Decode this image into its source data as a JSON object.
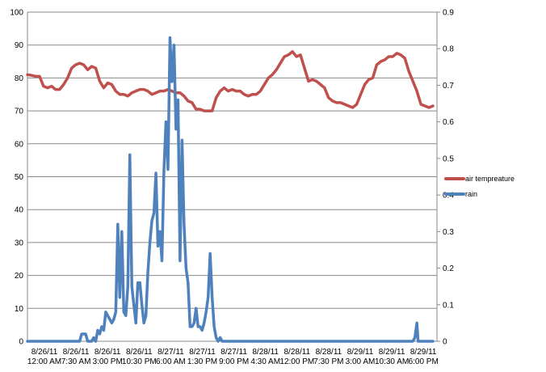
{
  "chart_data": {
    "type": "line",
    "title": "",
    "xlabel": "",
    "ylabel": "",
    "x_ticks": [
      [
        "8/26/11",
        "12:00 AM"
      ],
      [
        "8/26/11",
        "7:30 AM"
      ],
      [
        "8/26/11",
        "3:00 PM"
      ],
      [
        "8/26/11",
        "10:30 PM"
      ],
      [
        "8/27/11",
        "6:00 AM"
      ],
      [
        "8/27/11",
        "1:30 PM"
      ],
      [
        "8/27/11",
        "9:00 PM"
      ],
      [
        "8/28/11",
        "4:30 AM"
      ],
      [
        "8/28/11",
        "12:00 PM"
      ],
      [
        "8/28/11",
        "7:30 PM"
      ],
      [
        "8/29/11",
        "3:00 AM"
      ],
      [
        "8/29/11",
        "10:30 AM"
      ],
      [
        "8/29/11",
        "6:00 PM"
      ]
    ],
    "x_range": [
      0,
      102
    ],
    "y_left": {
      "min": 0,
      "max": 100,
      "ticks": [
        "0",
        "10",
        "20",
        "30",
        "40",
        "50",
        "60",
        "70",
        "80",
        "90",
        "100"
      ]
    },
    "y_right": {
      "min": 0,
      "max": 0.9,
      "ticks": [
        "0",
        "0.1",
        "0.2",
        "0.3",
        "0.4",
        "0.5",
        "0.6",
        "0.7",
        "0.8",
        "0.9"
      ]
    },
    "grid": "horizontal",
    "legend_position": "right",
    "series": [
      {
        "name": "air tempreature",
        "axis": "left",
        "color": "#c0504d",
        "points": [
          [
            0,
            81
          ],
          [
            1,
            80.8
          ],
          [
            2,
            80.5
          ],
          [
            3,
            80.5
          ],
          [
            4,
            77.5
          ],
          [
            5,
            77
          ],
          [
            6,
            77.5
          ],
          [
            7,
            76.5
          ],
          [
            8,
            76.5
          ],
          [
            9,
            78
          ],
          [
            10,
            80
          ],
          [
            11,
            83
          ],
          [
            12,
            84
          ],
          [
            13,
            84.5
          ],
          [
            14,
            84
          ],
          [
            15,
            82.5
          ],
          [
            16,
            83.5
          ],
          [
            17,
            83
          ],
          [
            18,
            79
          ],
          [
            19,
            77
          ],
          [
            20,
            78.5
          ],
          [
            21,
            78
          ],
          [
            22,
            76
          ],
          [
            23,
            75
          ],
          [
            24,
            75
          ],
          [
            25,
            74.5
          ],
          [
            26,
            75.5
          ],
          [
            27,
            76
          ],
          [
            28,
            76.5
          ],
          [
            29,
            76.5
          ],
          [
            30,
            76
          ],
          [
            31,
            75
          ],
          [
            32,
            75.5
          ],
          [
            33,
            76
          ],
          [
            34,
            76
          ],
          [
            35,
            76.5
          ],
          [
            36,
            76
          ],
          [
            37,
            75.5
          ],
          [
            38,
            75.5
          ],
          [
            39,
            74.5
          ],
          [
            40,
            73
          ],
          [
            41,
            72.5
          ],
          [
            42,
            70.5
          ],
          [
            43,
            70.5
          ],
          [
            44,
            70
          ],
          [
            45,
            70
          ],
          [
            46,
            70
          ],
          [
            47,
            74
          ],
          [
            48,
            76
          ],
          [
            49,
            77
          ],
          [
            50,
            76
          ],
          [
            51,
            76.5
          ],
          [
            52,
            76
          ],
          [
            53,
            76
          ],
          [
            54,
            75
          ],
          [
            55,
            74.5
          ],
          [
            56,
            75
          ],
          [
            57,
            75
          ],
          [
            58,
            76
          ],
          [
            59,
            78
          ],
          [
            60,
            80
          ],
          [
            61,
            81
          ],
          [
            62,
            82.5
          ],
          [
            63,
            84.5
          ],
          [
            64,
            86.5
          ],
          [
            65,
            87
          ],
          [
            66,
            88
          ],
          [
            67,
            86.5
          ],
          [
            68,
            87
          ],
          [
            69,
            83
          ],
          [
            70,
            79
          ],
          [
            71,
            79.5
          ],
          [
            72,
            79
          ],
          [
            73,
            78
          ],
          [
            74,
            77
          ],
          [
            75,
            74
          ],
          [
            76,
            73
          ],
          [
            77,
            72.5
          ],
          [
            78,
            72.5
          ],
          [
            79,
            72
          ],
          [
            80,
            71.5
          ],
          [
            81,
            71
          ],
          [
            82,
            72
          ],
          [
            83,
            75
          ],
          [
            84,
            78
          ],
          [
            85,
            79.5
          ],
          [
            86,
            80
          ],
          [
            87,
            84
          ],
          [
            88,
            85
          ],
          [
            89,
            85.5
          ],
          [
            90,
            86.5
          ],
          [
            91,
            86.5
          ],
          [
            92,
            87.5
          ],
          [
            93,
            87
          ],
          [
            94,
            86
          ],
          [
            95,
            82
          ],
          [
            96,
            79
          ],
          [
            97,
            76
          ],
          [
            98,
            72
          ],
          [
            99,
            71.5
          ],
          [
            100,
            71
          ],
          [
            101,
            71.5
          ]
        ]
      },
      {
        "name": "rain",
        "axis": "right",
        "color": "#4f81bd",
        "points": [
          [
            0,
            0
          ],
          [
            13,
            0
          ],
          [
            13.5,
            0.02
          ],
          [
            14.5,
            0.02
          ],
          [
            15,
            0
          ],
          [
            16,
            0
          ],
          [
            16.5,
            0.01
          ],
          [
            17,
            0
          ],
          [
            17.5,
            0.03
          ],
          [
            18,
            0.02
          ],
          [
            18.5,
            0.04
          ],
          [
            19,
            0.03
          ],
          [
            19.5,
            0.08
          ],
          [
            20,
            0.07
          ],
          [
            21,
            0.05
          ],
          [
            21.5,
            0.06
          ],
          [
            22,
            0.08
          ],
          [
            22.5,
            0.32
          ],
          [
            23,
            0.12
          ],
          [
            23.5,
            0.3
          ],
          [
            24,
            0.08
          ],
          [
            24.5,
            0.07
          ],
          [
            25,
            0.15
          ],
          [
            25.5,
            0.51
          ],
          [
            26,
            0.15
          ],
          [
            26.5,
            0.1
          ],
          [
            27,
            0.05
          ],
          [
            27.5,
            0.16
          ],
          [
            28,
            0.16
          ],
          [
            28.5,
            0.1
          ],
          [
            29,
            0.05
          ],
          [
            29.5,
            0.07
          ],
          [
            30,
            0.19
          ],
          [
            30.5,
            0.27
          ],
          [
            31,
            0.33
          ],
          [
            31.5,
            0.35
          ],
          [
            32,
            0.46
          ],
          [
            32.5,
            0.26
          ],
          [
            33,
            0.3
          ],
          [
            33.5,
            0.22
          ],
          [
            34,
            0.47
          ],
          [
            34.5,
            0.6
          ],
          [
            35,
            0.47
          ],
          [
            35.5,
            0.83
          ],
          [
            36,
            0.71
          ],
          [
            36.5,
            0.81
          ],
          [
            37,
            0.58
          ],
          [
            37.5,
            0.66
          ],
          [
            38,
            0.22
          ],
          [
            38.5,
            0.55
          ],
          [
            39,
            0.32
          ],
          [
            39.5,
            0.2
          ],
          [
            40,
            0.16
          ],
          [
            40.5,
            0.04
          ],
          [
            41,
            0.04
          ],
          [
            41.5,
            0.05
          ],
          [
            42,
            0.09
          ],
          [
            42.5,
            0.04
          ],
          [
            43,
            0.04
          ],
          [
            43.5,
            0.03
          ],
          [
            44,
            0.05
          ],
          [
            44.5,
            0.08
          ],
          [
            45,
            0.12
          ],
          [
            45.5,
            0.24
          ],
          [
            46,
            0.12
          ],
          [
            46.5,
            0.04
          ],
          [
            47,
            0.01
          ],
          [
            47.5,
            0
          ],
          [
            48,
            0.01
          ],
          [
            48.5,
            0
          ],
          [
            96,
            0
          ],
          [
            96.5,
            0.01
          ],
          [
            97,
            0.05
          ],
          [
            97.3,
            0
          ],
          [
            101,
            0
          ]
        ]
      }
    ]
  }
}
